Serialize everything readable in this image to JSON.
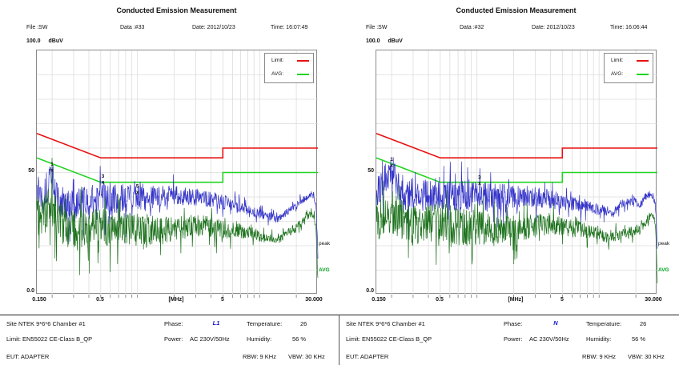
{
  "colors": {
    "limit_line": "#e81111",
    "avg_limit_line": "#21d421",
    "peak_trace": "#3434c8",
    "avg_trace": "#1d721d",
    "avg_right_label": "#00a11f",
    "phase_value": "#1515cc",
    "grid": "#dcdcdc"
  },
  "panels": [
    {
      "title": "Conducted Emission Measurement",
      "header": {
        "file": "File :SW",
        "data_no": "Data :#33",
        "date": "Date: 2012/10/23",
        "time": "Time: 16:07:49"
      },
      "y_axis": {
        "max_label": "100.0",
        "unit": "dBuV",
        "mid_label": "50",
        "min_label": "0.0"
      },
      "x_axis": {
        "tick_labels": [
          "0.150",
          "0.5",
          "5",
          "30.000"
        ],
        "unit_label": "[MHz]"
      },
      "legend": {
        "limit_label": "Limit:",
        "avg_label": "AVG:"
      },
      "right_labels": {
        "peak": "peak",
        "avg": "AVG"
      },
      "footer": {
        "site": "Site  NTEK 9*6*6 Chamber #1",
        "limit": "Limit: EN55022 CE-Class B_QP",
        "eut": "EUT:  ADAPTER",
        "phase_label": "Phase:",
        "phase_value": "L1",
        "power_label": "Power:",
        "power_value": "AC 230V/50Hz",
        "temperature_label": "Temperature:",
        "temperature_value": "26",
        "humidity_label": "Humidity:",
        "humidity_value": "56 %",
        "rbw": "RBW: 9 KHz",
        "vbw": "VBW: 30 KHz"
      }
    },
    {
      "title": "Conducted Emission Measurement",
      "header": {
        "file": "File :SW",
        "data_no": "Data :#32",
        "date": "Date: 2012/10/23",
        "time": "Time: 16:06:44"
      },
      "y_axis": {
        "max_label": "100.0",
        "unit": "dBuV",
        "mid_label": "50",
        "min_label": "0.0"
      },
      "x_axis": {
        "tick_labels": [
          "0.150",
          "0.5",
          "5",
          "30.000"
        ],
        "unit_label": "[MHz]"
      },
      "legend": {
        "limit_label": "Limit:",
        "avg_label": "AVG:"
      },
      "right_labels": {
        "peak": "peak",
        "avg": "AVG"
      },
      "footer": {
        "site": "Site  NTEK 9*6*6 Chamber #1",
        "limit": "Limit: EN55022 CE-Class B_QP",
        "eut": "EUT:  ADAPTER",
        "phase_label": "Phase:",
        "phase_value": "N",
        "power_label": "Power:",
        "power_value": "AC 230V/50Hz",
        "temperature_label": "Temperature:",
        "temperature_value": "26",
        "humidity_label": "Humidity:",
        "humidity_value": "56 %",
        "rbw": "RBW: 9 KHz",
        "vbw": "VBW: 30 KHz"
      }
    }
  ],
  "chart_data": [
    {
      "type": "line",
      "title": "Conducted Emission Measurement (Phase L1, Data #33)",
      "x_axis": {
        "scale": "log",
        "range_mhz": [
          0.15,
          30
        ],
        "unit": "MHz",
        "gridlines_mhz": [
          0.2,
          0.3,
          0.4,
          0.5,
          0.6,
          0.7,
          0.8,
          0.9,
          1,
          2,
          3,
          4,
          5,
          6,
          7,
          8,
          9,
          10,
          20
        ]
      },
      "y_axis": {
        "range_dbuv": [
          0,
          100
        ],
        "unit": "dBuV",
        "gridlines_dbuv": [
          10,
          20,
          30,
          40,
          50,
          60,
          70,
          80,
          90
        ]
      },
      "series": [
        {
          "name": "limit_qp",
          "legend": "Limit:",
          "color": "#e81111",
          "width": 1.6,
          "points_mhz_dbuv": [
            [
              0.15,
              66
            ],
            [
              0.5,
              56
            ],
            [
              5,
              56
            ],
            [
              5,
              60
            ],
            [
              30,
              60
            ]
          ]
        },
        {
          "name": "limit_avg",
          "legend": "AVG:",
          "color": "#21d421",
          "width": 1.6,
          "points_mhz_dbuv": [
            [
              0.15,
              56
            ],
            [
              0.5,
              46
            ],
            [
              5,
              46
            ],
            [
              5,
              50
            ],
            [
              30,
              50
            ]
          ]
        },
        {
          "name": "peak_trace",
          "color": "#3434c8",
          "width": 0.7,
          "generated_noise": true,
          "seed": 13,
          "n_points": 760,
          "envelope_mhz_dbuv": [
            [
              0.15,
              44
            ],
            [
              0.17,
              40
            ],
            [
              0.2,
              49
            ],
            [
              0.22,
              40
            ],
            [
              0.25,
              37
            ],
            [
              0.3,
              36
            ],
            [
              0.35,
              39
            ],
            [
              0.4,
              37
            ],
            [
              0.45,
              40
            ],
            [
              0.5,
              41
            ],
            [
              0.6,
              38
            ],
            [
              0.7,
              40
            ],
            [
              0.8,
              39
            ],
            [
              0.9,
              41
            ],
            [
              1.0,
              41
            ],
            [
              1.2,
              39
            ],
            [
              1.5,
              40
            ],
            [
              2,
              41
            ],
            [
              2.5,
              40
            ],
            [
              3,
              40
            ],
            [
              4,
              39
            ],
            [
              5,
              38
            ],
            [
              6,
              37
            ],
            [
              7,
              36
            ],
            [
              8,
              35
            ],
            [
              9,
              34
            ],
            [
              10,
              33
            ],
            [
              12,
              32
            ],
            [
              14,
              31
            ],
            [
              15,
              32
            ],
            [
              17,
              34
            ],
            [
              20,
              37
            ],
            [
              23,
              39
            ],
            [
              25,
              40
            ],
            [
              26,
              41
            ],
            [
              27,
              41
            ],
            [
              28,
              40
            ],
            [
              29,
              35
            ],
            [
              29.6,
              25
            ],
            [
              30,
              15
            ]
          ],
          "noise_amp_mhz_db": [
            [
              0.15,
              7
            ],
            [
              1,
              6
            ],
            [
              2,
              4
            ],
            [
              5,
              3
            ],
            [
              10,
              2
            ],
            [
              15,
              1.5
            ],
            [
              30,
              1.2
            ]
          ]
        },
        {
          "name": "avg_trace",
          "color": "#1d721d",
          "width": 0.7,
          "generated_noise": true,
          "seed": 41,
          "n_points": 760,
          "envelope_mhz_dbuv": [
            [
              0.15,
              32
            ],
            [
              0.2,
              36
            ],
            [
              0.25,
              28
            ],
            [
              0.3,
              26
            ],
            [
              0.4,
              27
            ],
            [
              0.5,
              28
            ],
            [
              0.6,
              26
            ],
            [
              0.7,
              27
            ],
            [
              0.8,
              26
            ],
            [
              1,
              27
            ],
            [
              1.5,
              26
            ],
            [
              2,
              27
            ],
            [
              3,
              28
            ],
            [
              4,
              28
            ],
            [
              5,
              27
            ],
            [
              6,
              26
            ],
            [
              7,
              26
            ],
            [
              8,
              25
            ],
            [
              9,
              25
            ],
            [
              10,
              24
            ],
            [
              12,
              23
            ],
            [
              14,
              22
            ],
            [
              15,
              23
            ],
            [
              17,
              25
            ],
            [
              20,
              28
            ],
            [
              23,
              30
            ],
            [
              25,
              32
            ],
            [
              26,
              33
            ],
            [
              27,
              33
            ],
            [
              28,
              32
            ],
            [
              29,
              26
            ],
            [
              29.6,
              14
            ],
            [
              30,
              6
            ]
          ],
          "noise_amp_mhz_db": [
            [
              0.15,
              9
            ],
            [
              1,
              7
            ],
            [
              2,
              5
            ],
            [
              5,
              4
            ],
            [
              10,
              2.5
            ],
            [
              15,
              1.8
            ],
            [
              30,
              1.5
            ]
          ]
        }
      ],
      "markers": [
        {
          "label": "1",
          "f_mhz": 0.2,
          "dbuv": 52
        },
        {
          "label": "3",
          "f_mhz": 0.52,
          "dbuv": 47
        },
        {
          "label": "5",
          "f_mhz": 1.0,
          "dbuv": 43
        }
      ]
    },
    {
      "type": "line",
      "title": "Conducted Emission Measurement (Phase N, Data #32)",
      "x_axis": {
        "scale": "log",
        "range_mhz": [
          0.15,
          30
        ],
        "unit": "MHz",
        "gridlines_mhz": [
          0.2,
          0.3,
          0.4,
          0.5,
          0.6,
          0.7,
          0.8,
          0.9,
          1,
          2,
          3,
          4,
          5,
          6,
          7,
          8,
          9,
          10,
          20
        ]
      },
      "y_axis": {
        "range_dbuv": [
          0,
          100
        ],
        "unit": "dBuV",
        "gridlines_dbuv": [
          10,
          20,
          30,
          40,
          50,
          60,
          70,
          80,
          90
        ]
      },
      "series": [
        {
          "name": "limit_qp",
          "legend": "Limit:",
          "color": "#e81111",
          "width": 1.6,
          "points_mhz_dbuv": [
            [
              0.15,
              66
            ],
            [
              0.5,
              56
            ],
            [
              5,
              56
            ],
            [
              5,
              60
            ],
            [
              30,
              60
            ]
          ]
        },
        {
          "name": "limit_avg",
          "legend": "AVG:",
          "color": "#21d421",
          "width": 1.6,
          "points_mhz_dbuv": [
            [
              0.15,
              56
            ],
            [
              0.5,
              46
            ],
            [
              5,
              46
            ],
            [
              5,
              50
            ],
            [
              30,
              50
            ]
          ]
        },
        {
          "name": "peak_trace",
          "color": "#3434c8",
          "width": 0.7,
          "generated_noise": true,
          "seed": 101,
          "n_points": 780,
          "envelope_mhz_dbuv": [
            [
              0.15,
              42
            ],
            [
              0.2,
              51
            ],
            [
              0.25,
              40
            ],
            [
              0.3,
              42
            ],
            [
              0.4,
              40
            ],
            [
              0.5,
              42
            ],
            [
              0.6,
              40
            ],
            [
              0.7,
              41
            ],
            [
              0.8,
              40
            ],
            [
              1,
              40
            ],
            [
              1.5,
              40
            ],
            [
              2,
              40
            ],
            [
              3,
              40
            ],
            [
              4,
              39
            ],
            [
              5,
              38
            ],
            [
              6,
              37
            ],
            [
              7,
              36
            ],
            [
              8,
              36
            ],
            [
              10,
              35
            ],
            [
              12,
              34
            ],
            [
              13,
              33
            ],
            [
              15,
              37
            ],
            [
              17,
              38
            ],
            [
              18,
              38
            ],
            [
              20,
              38
            ],
            [
              21,
              36
            ],
            [
              22,
              37
            ],
            [
              24,
              40
            ],
            [
              26,
              41
            ],
            [
              27,
              41
            ],
            [
              28,
              40
            ],
            [
              29,
              36
            ],
            [
              29.6,
              26
            ],
            [
              30,
              18
            ]
          ],
          "noise_amp_mhz_db": [
            [
              0.15,
              7
            ],
            [
              1,
              6.5
            ],
            [
              2,
              5
            ],
            [
              5,
              3.5
            ],
            [
              10,
              2.2
            ],
            [
              15,
              1.8
            ],
            [
              30,
              1.5
            ]
          ]
        },
        {
          "name": "avg_trace",
          "color": "#1d721d",
          "width": 0.7,
          "generated_noise": true,
          "seed": 77,
          "n_points": 780,
          "envelope_mhz_dbuv": [
            [
              0.15,
              30
            ],
            [
              0.2,
              34
            ],
            [
              0.3,
              28
            ],
            [
              0.5,
              30
            ],
            [
              0.7,
              28
            ],
            [
              1,
              27
            ],
            [
              1.5,
              26
            ],
            [
              2,
              27
            ],
            [
              3,
              28
            ],
            [
              4,
              29
            ],
            [
              5,
              28
            ],
            [
              6,
              27
            ],
            [
              7,
              27
            ],
            [
              8,
              26
            ],
            [
              10,
              25
            ],
            [
              12,
              23
            ],
            [
              14,
              24
            ],
            [
              16,
              25
            ],
            [
              18,
              26
            ],
            [
              20,
              26
            ],
            [
              22,
              27
            ],
            [
              24,
              29
            ],
            [
              25,
              31
            ],
            [
              26,
              32
            ],
            [
              27,
              33
            ],
            [
              28,
              32
            ],
            [
              29,
              27
            ],
            [
              29.6,
              13
            ],
            [
              30,
              6
            ]
          ],
          "noise_amp_mhz_db": [
            [
              0.15,
              9
            ],
            [
              1,
              7.5
            ],
            [
              2,
              5.5
            ],
            [
              5,
              4
            ],
            [
              10,
              2.5
            ],
            [
              15,
              2
            ],
            [
              30,
              1.6
            ]
          ]
        }
      ],
      "markers": [
        {
          "label": "1",
          "f_mhz": 0.2,
          "dbuv": 54
        },
        {
          "label": "3",
          "f_mhz": 1.05,
          "dbuv": 46.5
        }
      ]
    }
  ]
}
